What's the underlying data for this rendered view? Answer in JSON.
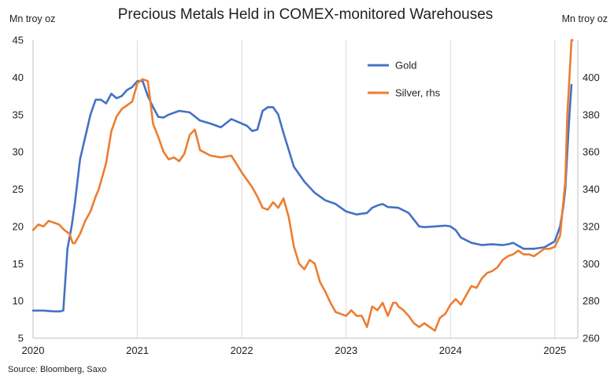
{
  "chart_data": {
    "type": "line",
    "title": "Precious Metals Held in COMEX-monitored Warehouses",
    "left_axis_label": "Mn troy oz",
    "right_axis_label": "Mn troy oz",
    "source": "Source: Bloomberg, Saxo",
    "xlim": [
      2020.0,
      2025.22
    ],
    "x_ticks": [
      2020,
      2021,
      2022,
      2023,
      2024,
      2025
    ],
    "x_tick_labels": [
      "2020",
      "2021",
      "2022",
      "2023",
      "2024",
      "2025"
    ],
    "ylim_left": [
      5,
      45
    ],
    "y_ticks_left": [
      5,
      10,
      15,
      20,
      25,
      30,
      35,
      40,
      45
    ],
    "ylim_right": [
      260,
      420
    ],
    "y_ticks_right": [
      260,
      280,
      300,
      320,
      340,
      360,
      380,
      400
    ],
    "grid": "vertical",
    "legend_position": "top-right",
    "colors": {
      "gold": "#4472c4",
      "silver": "#ed7d31",
      "grid": "#d9d9d9",
      "axis": "#bfbfbf"
    },
    "series": [
      {
        "name": "Gold",
        "axis": "left",
        "x": [
          2020.0,
          2020.1,
          2020.2,
          2020.23,
          2020.26,
          2020.29,
          2020.33,
          2020.37,
          2020.4,
          2020.45,
          2020.5,
          2020.55,
          2020.6,
          2020.65,
          2020.7,
          2020.75,
          2020.8,
          2020.85,
          2020.9,
          2020.95,
          2021.0,
          2021.05,
          2021.1,
          2021.15,
          2021.2,
          2021.25,
          2021.3,
          2021.4,
          2021.5,
          2021.6,
          2021.7,
          2021.8,
          2021.9,
          2022.0,
          2022.05,
          2022.1,
          2022.15,
          2022.2,
          2022.25,
          2022.3,
          2022.35,
          2022.4,
          2022.5,
          2022.6,
          2022.7,
          2022.8,
          2022.9,
          2023.0,
          2023.1,
          2023.2,
          2023.25,
          2023.3,
          2023.35,
          2023.4,
          2023.5,
          2023.6,
          2023.7,
          2023.75,
          2023.85,
          2023.95,
          2024.0,
          2024.05,
          2024.1,
          2024.2,
          2024.3,
          2024.4,
          2024.5,
          2024.55,
          2024.6,
          2024.65,
          2024.7,
          2024.8,
          2024.9,
          2024.95,
          2025.0,
          2025.05,
          2025.08,
          2025.1,
          2025.12,
          2025.14,
          2025.16
        ],
        "values": [
          8.7,
          8.7,
          8.6,
          8.6,
          8.6,
          8.7,
          17.0,
          20.0,
          23.0,
          29.0,
          32.0,
          35.0,
          37.0,
          37.0,
          36.5,
          37.8,
          37.2,
          37.5,
          38.3,
          38.7,
          39.5,
          39.5,
          37.5,
          36.0,
          34.7,
          34.6,
          35.0,
          35.5,
          35.3,
          34.2,
          33.8,
          33.3,
          34.4,
          33.8,
          33.5,
          32.8,
          33.0,
          35.5,
          36.0,
          36.0,
          35.0,
          32.5,
          28.0,
          26.0,
          24.5,
          23.5,
          23.0,
          22.0,
          21.6,
          21.8,
          22.5,
          22.8,
          23.0,
          22.6,
          22.5,
          21.8,
          20.0,
          19.9,
          20.0,
          20.1,
          20.0,
          19.5,
          18.5,
          17.8,
          17.5,
          17.6,
          17.5,
          17.6,
          17.8,
          17.4,
          17.0,
          17.0,
          17.2,
          17.6,
          18.0,
          20.0,
          22.5,
          25.0,
          30.0,
          35.0,
          39.0
        ]
      },
      {
        "name": "Silver, rhs",
        "axis": "right",
        "x": [
          2020.0,
          2020.05,
          2020.1,
          2020.15,
          2020.2,
          2020.25,
          2020.3,
          2020.35,
          2020.38,
          2020.4,
          2020.45,
          2020.5,
          2020.55,
          2020.6,
          2020.63,
          2020.65,
          2020.7,
          2020.75,
          2020.8,
          2020.85,
          2020.9,
          2020.95,
          2021.0,
          2021.05,
          2021.1,
          2021.15,
          2021.2,
          2021.25,
          2021.3,
          2021.35,
          2021.4,
          2021.45,
          2021.5,
          2021.55,
          2021.6,
          2021.7,
          2021.8,
          2021.9,
          2022.0,
          2022.05,
          2022.1,
          2022.15,
          2022.2,
          2022.25,
          2022.3,
          2022.35,
          2022.4,
          2022.45,
          2022.5,
          2022.55,
          2022.6,
          2022.65,
          2022.7,
          2022.75,
          2022.8,
          2022.85,
          2022.9,
          2022.95,
          2023.0,
          2023.05,
          2023.1,
          2023.15,
          2023.2,
          2023.25,
          2023.3,
          2023.35,
          2023.4,
          2023.45,
          2023.48,
          2023.5,
          2023.55,
          2023.6,
          2023.65,
          2023.7,
          2023.75,
          2023.8,
          2023.85,
          2023.9,
          2023.95,
          2024.0,
          2024.05,
          2024.1,
          2024.15,
          2024.2,
          2024.25,
          2024.3,
          2024.35,
          2024.4,
          2024.45,
          2024.5,
          2024.55,
          2024.6,
          2024.65,
          2024.7,
          2024.75,
          2024.8,
          2024.85,
          2024.9,
          2024.95,
          2025.0,
          2025.05,
          2025.1,
          2025.12,
          2025.14,
          2025.16,
          2025.17
        ],
        "values": [
          318,
          321,
          320,
          323,
          322,
          321,
          318,
          316,
          311,
          311,
          316,
          323,
          328,
          336,
          340,
          344,
          354,
          371,
          379,
          383,
          385,
          387,
          397,
          399,
          398,
          375,
          368,
          360,
          356,
          357,
          355,
          359,
          369,
          372,
          361,
          358,
          357,
          358,
          349,
          345,
          341,
          336,
          330,
          329,
          333,
          330,
          335,
          325,
          309,
          300,
          297,
          302,
          300,
          290,
          285,
          279,
          274,
          273,
          272,
          275,
          272,
          272,
          266,
          277,
          275,
          279,
          272,
          279,
          279,
          277,
          275,
          272,
          268,
          266,
          268,
          266,
          264,
          271,
          273,
          278,
          281,
          278,
          283,
          288,
          287,
          292,
          295,
          296,
          298,
          302,
          304,
          305,
          307,
          305,
          305,
          304,
          306,
          308,
          308,
          309,
          315,
          344,
          380,
          400,
          420,
          420
        ]
      }
    ]
  }
}
